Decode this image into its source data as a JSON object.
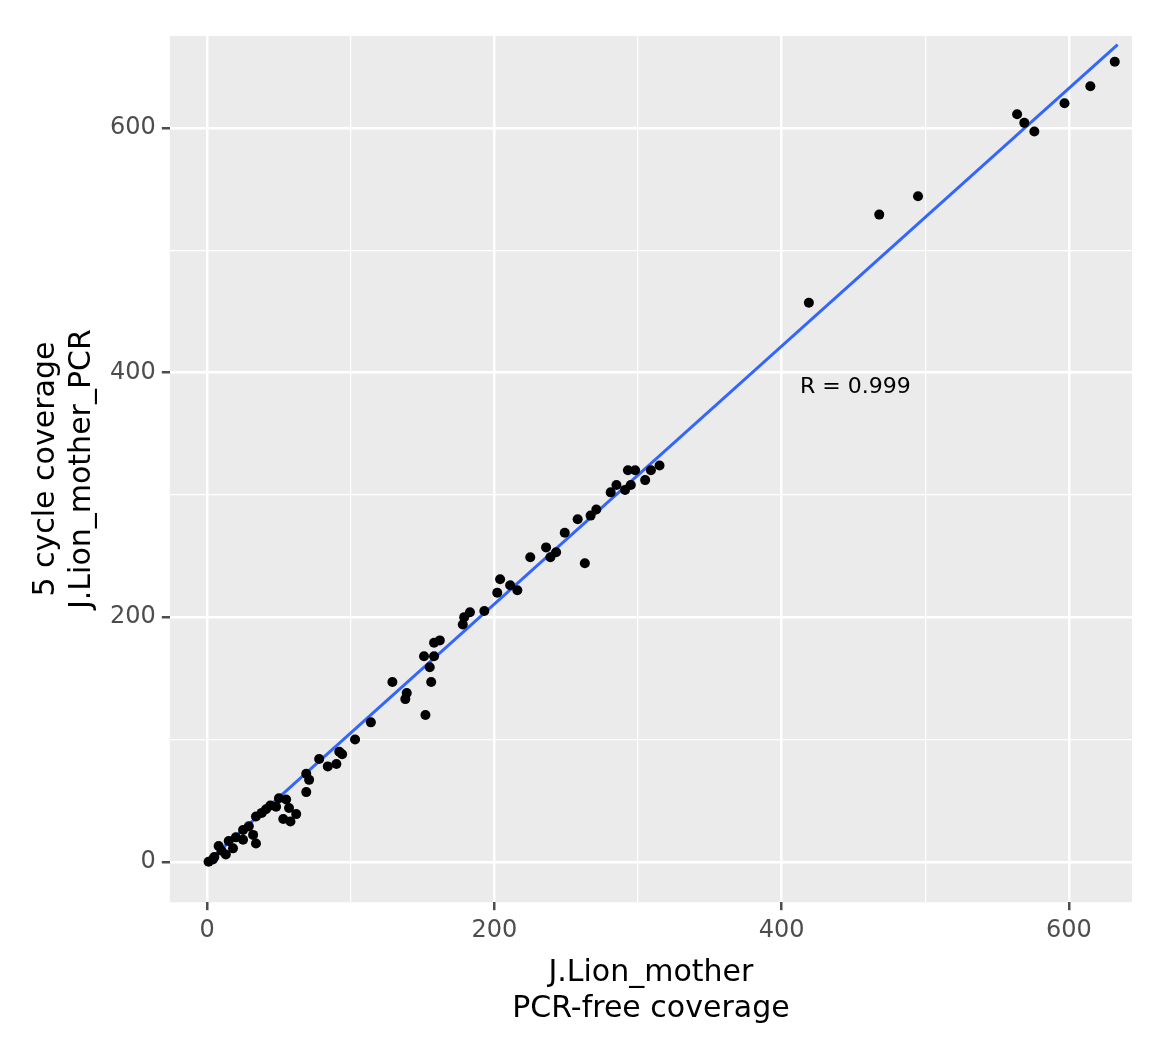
{
  "chart_data": {
    "type": "scatter",
    "xlabel": "J.Lion_mother\nPCR-free coverage",
    "ylabel": "5 cycle coverage\nJ.Lion_mother_PCR",
    "xlim": [
      -26,
      644
    ],
    "ylim": [
      -33,
      675
    ],
    "xticks": [
      0,
      {
        "value": 100,
        "label": null
      },
      200,
      {
        "value": 300,
        "label": null
      },
      400,
      {
        "value": 500,
        "label": null
      },
      600
    ],
    "yticks": [
      0,
      {
        "value": 100,
        "label": null
      },
      200,
      {
        "value": 300,
        "label": null
      },
      400,
      {
        "value": 500,
        "label": null
      },
      600
    ],
    "grid": true,
    "legend": false,
    "marker": "circle",
    "annotations": [
      "R = 0.999"
    ],
    "series": [
      {
        "color": "#000000",
        "x": [
          419,
          468,
          495,
          564,
          569,
          576,
          597,
          615,
          632,
          315,
          309,
          305,
          298,
          293,
          295,
          291,
          285,
          281,
          271,
          267,
          258,
          249,
          243,
          236,
          239,
          225,
          263,
          216,
          211,
          204,
          202,
          193,
          183,
          179,
          178,
          162,
          158,
          158,
          151,
          155,
          156,
          129,
          139,
          138,
          152,
          114,
          103,
          92,
          94,
          90,
          84,
          78,
          69,
          71,
          69,
          55,
          57,
          62,
          53,
          58,
          48,
          41,
          34,
          29,
          32,
          34,
          25,
          15,
          18,
          8,
          13,
          4,
          1,
          20,
          38,
          44,
          50,
          10,
          5,
          25
        ],
        "values": [
          457,
          529,
          544,
          611,
          604,
          597,
          620,
          634,
          654,
          324,
          320,
          312,
          320,
          320,
          308,
          304,
          308,
          302,
          288,
          283,
          280,
          269,
          253,
          257,
          249,
          249,
          244,
          222,
          226,
          231,
          220,
          205,
          204,
          200,
          194,
          181,
          179,
          168,
          168,
          159,
          147,
          147,
          138,
          133,
          120,
          114,
          100,
          90,
          88,
          80,
          78,
          84,
          72,
          67,
          57,
          51,
          44,
          39,
          35,
          33,
          45,
          43,
          37,
          29,
          22,
          15,
          18,
          17,
          11,
          13,
          6,
          2,
          0,
          20,
          40,
          46,
          52,
          9,
          4,
          26
        ]
      },
      {
        "type": "line",
        "color": "#3366ff",
        "line_style": "solid",
        "marker": "none",
        "x": [
          0,
          634
        ],
        "values": [
          0,
          668
        ]
      }
    ]
  }
}
